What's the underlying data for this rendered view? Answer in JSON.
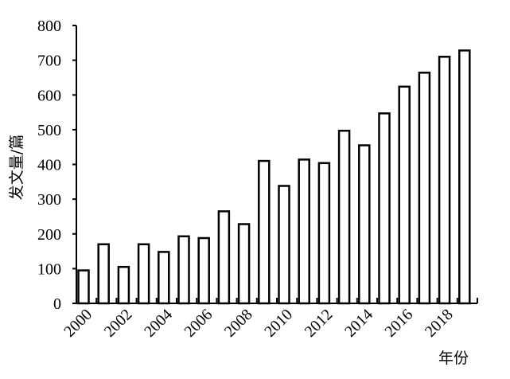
{
  "chart_data": {
    "type": "bar",
    "x": [
      2000,
      2001,
      2002,
      2003,
      2004,
      2005,
      2006,
      2007,
      2008,
      2009,
      2010,
      2011,
      2012,
      2013,
      2014,
      2015,
      2016,
      2017,
      2018,
      2019
    ],
    "values": [
      95,
      170,
      105,
      170,
      148,
      193,
      188,
      265,
      228,
      410,
      338,
      414,
      404,
      497,
      455,
      547,
      624,
      664,
      710,
      728
    ],
    "x_tick_labels": [
      "2000",
      "2002",
      "2004",
      "2006",
      "2008",
      "2010",
      "2012",
      "2014",
      "2016",
      "2018"
    ],
    "y_ticks": [
      0,
      100,
      200,
      300,
      400,
      500,
      600,
      700,
      800
    ],
    "ylim": [
      0,
      800
    ],
    "xlabel": "年份",
    "ylabel": "发文量/篇",
    "title": "",
    "grid": false,
    "legend": "none",
    "bar_fill": "#ffffff",
    "bar_stroke": "#000000"
  }
}
